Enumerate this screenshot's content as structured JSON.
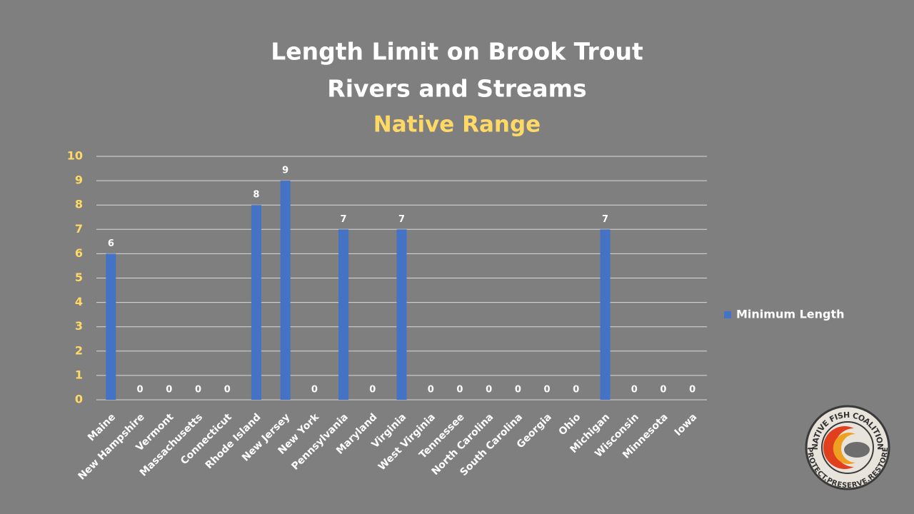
{
  "chart_data": {
    "type": "bar",
    "title": [
      "Length Limit on Brook Trout",
      "Rivers and Streams"
    ],
    "subtitle": "Native Range",
    "categories": [
      "Maine",
      "New Hampshire",
      "Vermont",
      "Massachusetts",
      "Connecticut",
      "Rhode Island",
      "New Jersey",
      "New York",
      "Pennsylvania",
      "Maryland",
      "Virginia",
      "West Virginia",
      "Tennessee",
      "North Carolina",
      "South Carolina",
      "Georgia",
      "Ohio",
      "Michigan",
      "Wisconsin",
      "Minnesota",
      "Iowa"
    ],
    "series": [
      {
        "name": "Minimum Length",
        "color": "#4472c4",
        "values": [
          6,
          0,
          0,
          0,
          0,
          8,
          9,
          0,
          7,
          0,
          7,
          0,
          0,
          0,
          0,
          0,
          0,
          7,
          0,
          0,
          0
        ]
      }
    ],
    "ylim": [
      0,
      10
    ],
    "yticks": [
      0,
      1,
      2,
      3,
      4,
      5,
      6,
      7,
      8,
      9,
      10
    ],
    "grid": true,
    "legend": "right"
  },
  "logo": {
    "top_text": "NATIVE FISH COALITION",
    "bottom_text": "PROTECT.PRESERVE.RESTORE"
  }
}
